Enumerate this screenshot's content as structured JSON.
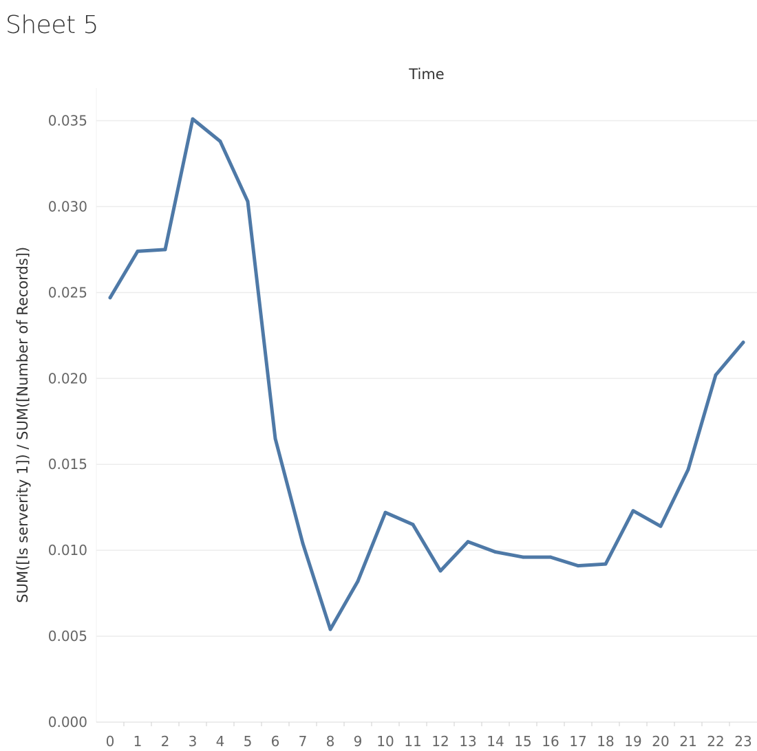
{
  "sheet": {
    "title": "Sheet 5"
  },
  "chart_data": {
    "type": "line",
    "title": "",
    "column_header": "Time",
    "xlabel": "",
    "ylabel": "SUM([Is serverity 1]) / SUM([Number of Records])",
    "categories": [
      "0",
      "1",
      "2",
      "3",
      "4",
      "5",
      "6",
      "7",
      "8",
      "9",
      "10",
      "11",
      "12",
      "13",
      "14",
      "15",
      "16",
      "17",
      "18",
      "19",
      "20",
      "21",
      "22",
      "23"
    ],
    "series": [
      {
        "values": [
          0.0247,
          0.0274,
          0.0275,
          0.0351,
          0.0338,
          0.0303,
          0.0165,
          0.0104,
          0.0054,
          0.0082,
          0.0122,
          0.0115,
          0.0088,
          0.0105,
          0.0099,
          0.0096,
          0.0096,
          0.0091,
          0.0092,
          0.0123,
          0.0114,
          0.0147,
          0.0202,
          0.0221
        ]
      }
    ],
    "y_ticks": [
      "0.000",
      "0.005",
      "0.010",
      "0.015",
      "0.020",
      "0.025",
      "0.030",
      "0.035"
    ],
    "ylim": [
      0,
      0.037
    ],
    "grid": true,
    "legend": "none",
    "colors": {
      "line": "#4e79a7",
      "grid": "#ececec",
      "tick_text": "#666666",
      "label_text": "#333333"
    }
  }
}
